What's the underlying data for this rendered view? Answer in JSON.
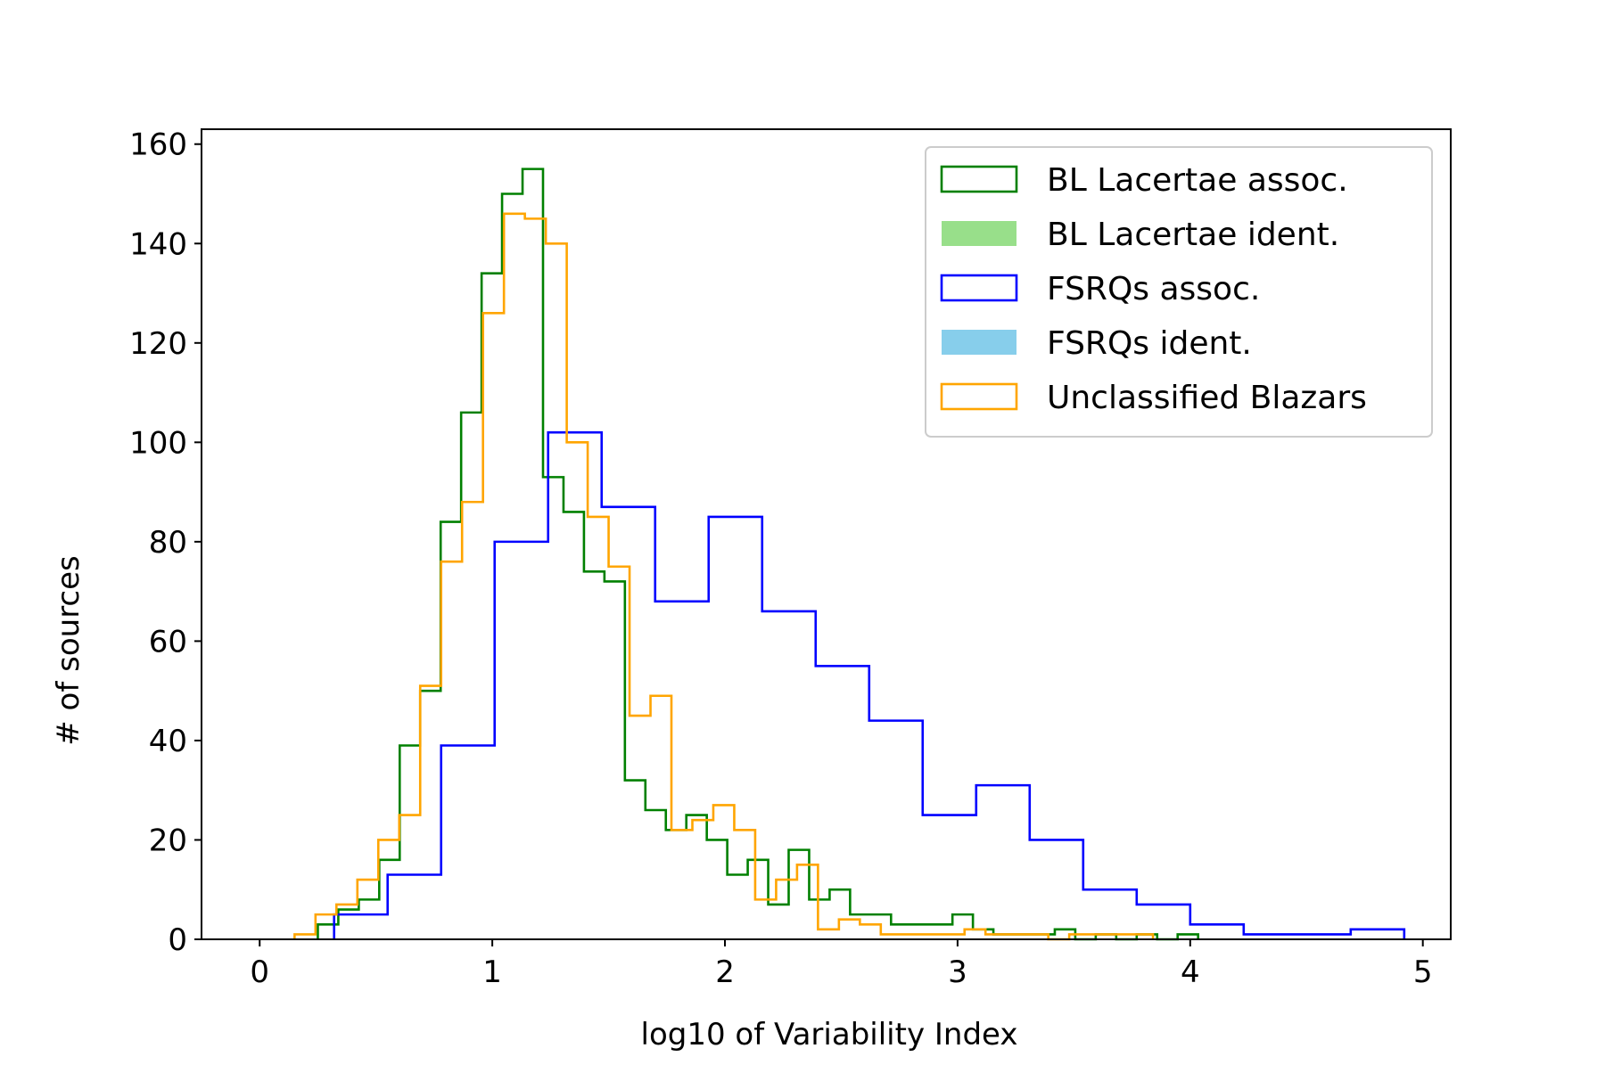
{
  "chart_data": {
    "type": "histogram",
    "title": "",
    "xlabel": "log10 of Variability Index",
    "ylabel": "# of sources",
    "xlim": [
      -0.25,
      5.12
    ],
    "ylim": [
      0,
      163
    ],
    "xticks": [
      0,
      1,
      2,
      3,
      4,
      5
    ],
    "yticks": [
      0,
      20,
      40,
      60,
      80,
      100,
      120,
      140,
      160
    ],
    "grid": false,
    "legend_position": "top-right",
    "series": [
      {
        "name": "BL Lacertae assoc.",
        "style": "step",
        "color": "#008000",
        "edges": [
          0.25,
          0.338,
          0.426,
          0.514,
          0.602,
          0.69,
          0.778,
          0.866,
          0.954,
          1.042,
          1.13,
          1.218,
          1.306,
          1.394,
          1.482,
          1.57,
          1.658,
          1.746,
          1.834,
          1.922,
          2.01,
          2.098,
          2.186,
          2.274,
          2.362,
          2.45,
          2.538,
          2.626,
          2.714,
          2.802,
          2.89,
          2.978,
          3.066,
          3.154,
          3.242,
          3.33,
          3.418,
          3.506,
          3.594,
          3.682,
          3.77,
          3.858,
          3.946,
          4.034
        ],
        "counts": [
          3,
          6,
          8,
          16,
          39,
          50,
          84,
          106,
          134,
          150,
          155,
          93,
          86,
          74,
          72,
          32,
          26,
          22,
          25,
          20,
          13,
          16,
          7,
          18,
          8,
          10,
          5,
          5,
          3,
          3,
          3,
          5,
          2,
          1,
          1,
          1,
          2,
          0,
          1,
          0,
          1,
          0,
          1
        ]
      },
      {
        "name": "BL Lacertae ident.",
        "style": "filled",
        "color": "#98df8a",
        "edges": [],
        "counts": []
      },
      {
        "name": "FSRQs assoc.",
        "style": "step",
        "color": "#0000ff",
        "edges": [
          0.32,
          0.55,
          0.78,
          1.01,
          1.24,
          1.47,
          1.7,
          1.93,
          2.16,
          2.39,
          2.62,
          2.85,
          3.08,
          3.31,
          3.54,
          3.77,
          4.0,
          4.23,
          4.46,
          4.69,
          4.92
        ],
        "counts": [
          5,
          13,
          39,
          80,
          102,
          87,
          68,
          85,
          66,
          55,
          44,
          25,
          31,
          20,
          10,
          7,
          3,
          1,
          1,
          2
        ]
      },
      {
        "name": "FSRQs ident.",
        "style": "filled",
        "color": "#87ceeb",
        "edges": [],
        "counts": []
      },
      {
        "name": "Unclassified Blazars",
        "style": "step",
        "color": "#ffa500",
        "edges": [
          0.15,
          0.24,
          0.33,
          0.42,
          0.51,
          0.6,
          0.69,
          0.78,
          0.87,
          0.96,
          1.05,
          1.14,
          1.23,
          1.32,
          1.41,
          1.5,
          1.59,
          1.68,
          1.77,
          1.86,
          1.95,
          2.04,
          2.13,
          2.22,
          2.31,
          2.4,
          2.49,
          2.58,
          2.67,
          2.76,
          2.85,
          2.94,
          3.03,
          3.12,
          3.21,
          3.3,
          3.39,
          3.48,
          3.57,
          3.66,
          3.75,
          3.84
        ],
        "counts": [
          1,
          5,
          7,
          12,
          20,
          25,
          51,
          76,
          88,
          126,
          146,
          145,
          140,
          100,
          85,
          75,
          45,
          49,
          22,
          24,
          27,
          22,
          8,
          12,
          15,
          2,
          4,
          3,
          1,
          1,
          1,
          1,
          2,
          1,
          1,
          1,
          0,
          1,
          1,
          1,
          1
        ]
      }
    ]
  }
}
